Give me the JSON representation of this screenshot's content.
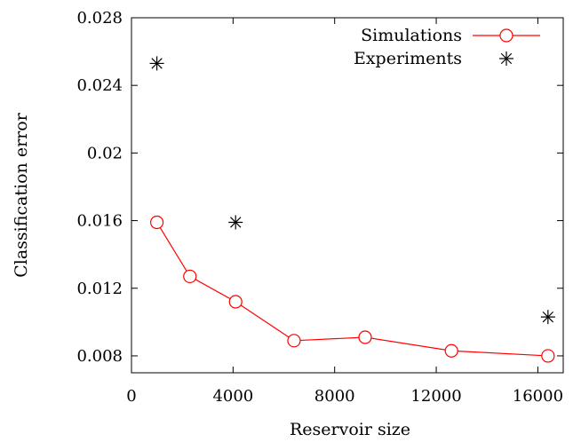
{
  "chart_data": {
    "type": "line",
    "xlabel": "Reservoir size",
    "ylabel": "Classification error",
    "xlim": [
      0,
      17000
    ],
    "ylim": [
      0.007,
      0.028
    ],
    "x_ticks": [
      0,
      4000,
      8000,
      12000,
      16000
    ],
    "x_tick_labels": [
      "0",
      "4000",
      "8000",
      "12000",
      "16000"
    ],
    "y_ticks": [
      0.008,
      0.012,
      0.016,
      0.02,
      0.024,
      0.028
    ],
    "y_tick_labels": [
      "0.008",
      "0.012",
      "0.016",
      "0.02",
      "0.024",
      "0.028"
    ],
    "grid": false,
    "legend_position": "top-right",
    "series": [
      {
        "name": "Simulations",
        "style": "line-with-circle-markers",
        "color": "#ff0000",
        "x": [
          1000,
          2300,
          4100,
          6400,
          9200,
          12600,
          16400
        ],
        "y": [
          0.0159,
          0.0127,
          0.0112,
          0.0089,
          0.0091,
          0.0083,
          0.008
        ]
      },
      {
        "name": "Experiments",
        "style": "star-markers",
        "color": "#000000",
        "x": [
          1000,
          4100,
          16400
        ],
        "y": [
          0.0253,
          0.0159,
          0.0103
        ]
      }
    ]
  }
}
